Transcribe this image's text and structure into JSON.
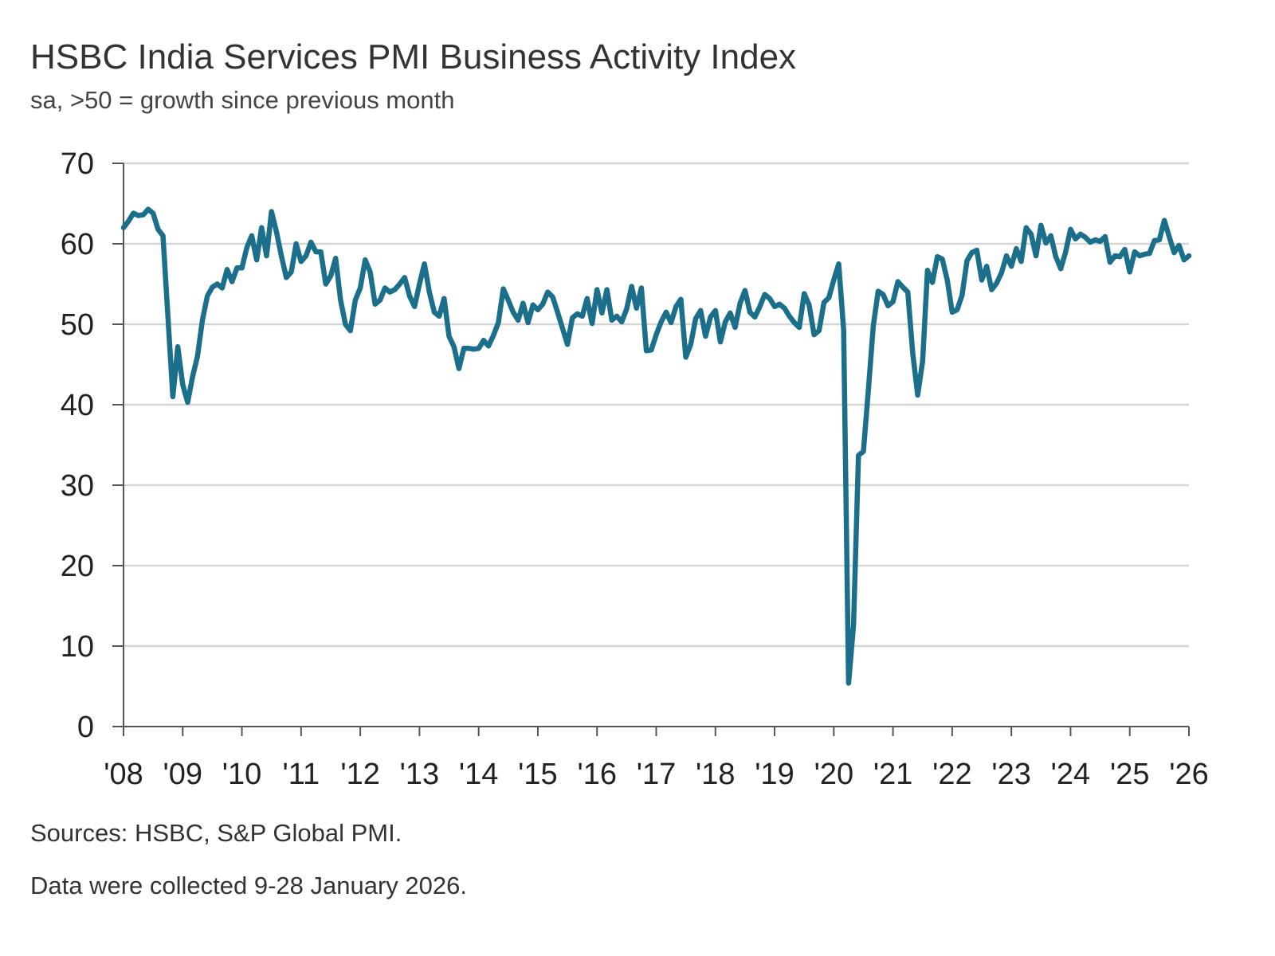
{
  "chart_data": {
    "type": "line",
    "title": "HSBC India Services PMI Business Activity Index",
    "subtitle": "sa, >50 = growth since previous month",
    "xlabel": "",
    "ylabel": "",
    "ylim": [
      0,
      70
    ],
    "yticks": [
      0,
      10,
      20,
      30,
      40,
      50,
      60,
      70
    ],
    "xlim": [
      "2008-01",
      "2026-01"
    ],
    "xtick_labels": [
      "'08",
      "'09",
      "'10",
      "'11",
      "'12",
      "'13",
      "'14",
      "'15",
      "'16",
      "'17",
      "'18",
      "'19",
      "'20",
      "'21",
      "'22",
      "'23",
      "'24",
      "'25",
      "'26"
    ],
    "grid": "horizontal",
    "frequency": "monthly",
    "line_color": "#1b6f8a",
    "series": [
      {
        "values_by_year": {
          "2008": [
            62.0,
            62.8,
            63.8,
            63.5,
            63.6,
            64.3,
            63.8,
            61.8,
            61.0,
            51.0,
            41.0,
            47.2
          ],
          "2009": [
            42.5,
            40.3,
            43.5,
            46.0,
            50.5,
            53.5,
            54.6,
            55.0,
            54.5,
            56.8,
            55.3,
            57.0
          ],
          "2010": [
            57.0,
            59.5,
            61.0,
            58.0,
            62.0,
            58.5,
            64.0,
            61.5,
            58.5,
            55.8,
            56.5,
            60.0
          ],
          "2011": [
            57.8,
            58.5,
            60.2,
            59.0,
            59.0,
            55.0,
            56.0,
            58.2,
            53.0,
            50.0,
            49.2,
            53.0
          ],
          "2012": [
            54.5,
            58.0,
            56.5,
            52.5,
            53.0,
            54.5,
            54.0,
            54.3,
            55.0,
            55.8,
            53.5,
            52.2
          ],
          "2013": [
            55.0,
            57.5,
            54.0,
            51.5,
            51.0,
            53.2,
            48.5,
            47.2,
            44.5,
            47.0,
            47.0,
            46.9
          ],
          "2014": [
            47.0,
            48.0,
            47.3,
            48.6,
            50.2,
            54.4,
            53.0,
            51.5,
            50.5,
            52.6,
            50.2,
            52.4
          ],
          "2015": [
            51.8,
            52.5,
            54.0,
            53.4,
            51.5,
            49.5,
            47.5,
            50.8,
            51.3,
            51.0,
            53.2,
            50.1
          ],
          "2016": [
            54.3,
            51.4,
            54.3,
            50.5,
            51.0,
            50.3,
            51.9,
            54.7,
            52.0,
            54.5,
            46.7,
            46.8
          ],
          "2017": [
            48.7,
            50.3,
            51.5,
            50.2,
            52.2,
            53.1,
            45.9,
            47.5,
            50.7,
            51.7,
            48.5,
            50.9
          ],
          "2018": [
            51.7,
            47.8,
            50.3,
            51.4,
            49.6,
            52.6,
            54.2,
            51.5,
            50.9,
            52.2,
            53.7,
            53.2
          ],
          "2019": [
            52.2,
            52.5,
            52.0,
            51.0,
            50.2,
            49.6,
            53.8,
            52.4,
            48.7,
            49.2,
            52.7,
            53.3
          ],
          "2020": [
            55.5,
            57.5,
            49.3,
            5.4,
            12.6,
            33.7,
            34.2,
            41.8,
            49.8,
            54.1,
            53.7,
            52.3
          ],
          "2021": [
            52.8,
            55.3,
            54.6,
            54.0,
            46.4,
            41.2,
            45.4,
            56.7,
            55.2,
            58.4,
            58.1,
            55.5
          ],
          "2022": [
            51.5,
            51.8,
            53.6,
            57.9,
            58.9,
            59.2,
            55.5,
            57.2,
            54.3,
            55.1,
            56.4,
            58.5
          ],
          "2023": [
            57.2,
            59.4,
            57.8,
            62.0,
            61.2,
            58.5,
            62.3,
            60.1,
            61.0,
            58.4,
            56.9,
            59.0
          ],
          "2024": [
            61.8,
            60.6,
            61.2,
            60.8,
            60.2,
            60.5,
            60.3,
            60.9,
            57.7,
            58.5,
            58.4,
            59.3
          ],
          "2025": [
            56.5,
            59.0,
            58.5,
            58.7,
            58.8,
            60.4,
            60.5,
            62.9,
            60.9,
            58.9,
            59.8,
            58.0
          ],
          "2026": [
            58.5
          ]
        }
      }
    ]
  },
  "footer": {
    "sources": "Sources: HSBC, S&P Global PMI.",
    "collection": "Data were collected 9-28 January 2026."
  }
}
